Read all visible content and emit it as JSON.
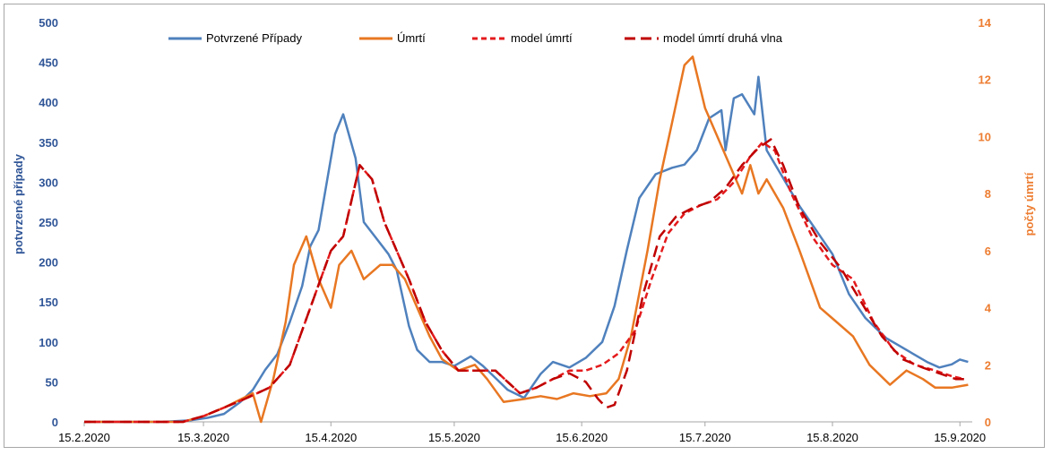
{
  "chart_data": {
    "type": "line",
    "ylabel_left": "potvrzené případy",
    "ylabel_right": "počty úmrtí",
    "ylim_left": [
      0,
      500
    ],
    "ylim_right": [
      0,
      14
    ],
    "yticks_left": [
      "0",
      "50",
      "100",
      "150",
      "200",
      "250",
      "300",
      "350",
      "400",
      "450",
      "500"
    ],
    "yticks_right": [
      "0",
      "2",
      "4",
      "6",
      "8",
      "10",
      "12",
      "14"
    ],
    "x_tick_labels": [
      "15.2.2020",
      "15.3.2020",
      "15.4.2020",
      "15.5.2020",
      "15.6.2020",
      "15.7.2020",
      "15.8.2020",
      "15.9.2020"
    ],
    "x_tick_dates": [
      "2020-02-15",
      "2020-03-15",
      "2020-04-15",
      "2020-05-15",
      "2020-06-15",
      "2020-07-15",
      "2020-08-15",
      "2020-09-15"
    ],
    "xlim": [
      "2020-02-15",
      "2020-09-18"
    ],
    "legend_position": "top",
    "grid": false,
    "series": [
      {
        "name": "Potvrzené Případy",
        "axis": "left",
        "color": "#4f81bd",
        "dash": "solid",
        "points": [
          [
            "2020-02-15",
            0
          ],
          [
            "2020-03-05",
            0
          ],
          [
            "2020-03-12",
            2
          ],
          [
            "2020-03-16",
            5
          ],
          [
            "2020-03-20",
            10
          ],
          [
            "2020-03-24",
            25
          ],
          [
            "2020-03-27",
            40
          ],
          [
            "2020-03-30",
            65
          ],
          [
            "2020-04-02",
            85
          ],
          [
            "2020-04-05",
            125
          ],
          [
            "2020-04-08",
            170
          ],
          [
            "2020-04-10",
            220
          ],
          [
            "2020-04-12",
            240
          ],
          [
            "2020-04-14",
            300
          ],
          [
            "2020-04-16",
            360
          ],
          [
            "2020-04-18",
            385
          ],
          [
            "2020-04-21",
            330
          ],
          [
            "2020-04-23",
            250
          ],
          [
            "2020-04-26",
            230
          ],
          [
            "2020-04-29",
            210
          ],
          [
            "2020-05-01",
            190
          ],
          [
            "2020-05-04",
            120
          ],
          [
            "2020-05-06",
            90
          ],
          [
            "2020-05-09",
            75
          ],
          [
            "2020-05-12",
            75
          ],
          [
            "2020-05-15",
            70
          ],
          [
            "2020-05-19",
            82
          ],
          [
            "2020-05-22",
            70
          ],
          [
            "2020-05-25",
            55
          ],
          [
            "2020-05-28",
            40
          ],
          [
            "2020-06-01",
            30
          ],
          [
            "2020-06-05",
            60
          ],
          [
            "2020-06-08",
            75
          ],
          [
            "2020-06-12",
            68
          ],
          [
            "2020-06-16",
            80
          ],
          [
            "2020-06-20",
            100
          ],
          [
            "2020-06-23",
            145
          ],
          [
            "2020-06-26",
            215
          ],
          [
            "2020-06-29",
            280
          ],
          [
            "2020-07-03",
            310
          ],
          [
            "2020-07-07",
            318
          ],
          [
            "2020-07-10",
            322
          ],
          [
            "2020-07-13",
            340
          ],
          [
            "2020-07-16",
            380
          ],
          [
            "2020-07-19",
            390
          ],
          [
            "2020-07-20",
            340
          ],
          [
            "2020-07-22",
            405
          ],
          [
            "2020-07-24",
            410
          ],
          [
            "2020-07-27",
            385
          ],
          [
            "2020-07-28",
            432
          ],
          [
            "2020-07-30",
            340
          ],
          [
            "2020-08-03",
            305
          ],
          [
            "2020-08-07",
            270
          ],
          [
            "2020-08-11",
            240
          ],
          [
            "2020-08-15",
            210
          ],
          [
            "2020-08-19",
            160
          ],
          [
            "2020-08-23",
            130
          ],
          [
            "2020-08-28",
            105
          ],
          [
            "2020-09-02",
            90
          ],
          [
            "2020-09-07",
            75
          ],
          [
            "2020-09-10",
            68
          ],
          [
            "2020-09-13",
            72
          ],
          [
            "2020-09-15",
            78
          ],
          [
            "2020-09-17",
            75
          ]
        ]
      },
      {
        "name": "Úmrtí",
        "axis": "right",
        "color": "#e87722",
        "dash": "solid",
        "points": [
          [
            "2020-02-15",
            0
          ],
          [
            "2020-03-10",
            0
          ],
          [
            "2020-03-15",
            0.2
          ],
          [
            "2020-03-20",
            0.5
          ],
          [
            "2020-03-27",
            1
          ],
          [
            "2020-03-29",
            0
          ],
          [
            "2020-04-01",
            1.5
          ],
          [
            "2020-04-04",
            3.5
          ],
          [
            "2020-04-06",
            5.5
          ],
          [
            "2020-04-09",
            6.5
          ],
          [
            "2020-04-12",
            5
          ],
          [
            "2020-04-15",
            4
          ],
          [
            "2020-04-17",
            5.5
          ],
          [
            "2020-04-20",
            6
          ],
          [
            "2020-04-23",
            5
          ],
          [
            "2020-04-27",
            5.5
          ],
          [
            "2020-04-30",
            5.5
          ],
          [
            "2020-05-03",
            5
          ],
          [
            "2020-05-06",
            4
          ],
          [
            "2020-05-09",
            3
          ],
          [
            "2020-05-12",
            2.2
          ],
          [
            "2020-05-16",
            1.8
          ],
          [
            "2020-05-20",
            2
          ],
          [
            "2020-05-23",
            1.5
          ],
          [
            "2020-05-27",
            0.7
          ],
          [
            "2020-06-01",
            0.8
          ],
          [
            "2020-06-05",
            0.9
          ],
          [
            "2020-06-09",
            0.8
          ],
          [
            "2020-06-13",
            1
          ],
          [
            "2020-06-17",
            0.9
          ],
          [
            "2020-06-21",
            1
          ],
          [
            "2020-06-24",
            1.5
          ],
          [
            "2020-06-27",
            3
          ],
          [
            "2020-07-01",
            6
          ],
          [
            "2020-07-04",
            8.5
          ],
          [
            "2020-07-07",
            10.5
          ],
          [
            "2020-07-10",
            12.5
          ],
          [
            "2020-07-12",
            12.8
          ],
          [
            "2020-07-15",
            11
          ],
          [
            "2020-07-18",
            10
          ],
          [
            "2020-07-21",
            9
          ],
          [
            "2020-07-24",
            8
          ],
          [
            "2020-07-26",
            9
          ],
          [
            "2020-07-28",
            8
          ],
          [
            "2020-07-30",
            8.5
          ],
          [
            "2020-08-03",
            7.5
          ],
          [
            "2020-08-07",
            6
          ],
          [
            "2020-08-12",
            4
          ],
          [
            "2020-08-16",
            3.5
          ],
          [
            "2020-08-20",
            3
          ],
          [
            "2020-08-24",
            2
          ],
          [
            "2020-08-29",
            1.3
          ],
          [
            "2020-09-02",
            1.8
          ],
          [
            "2020-09-06",
            1.5
          ],
          [
            "2020-09-09",
            1.2
          ],
          [
            "2020-09-13",
            1.2
          ],
          [
            "2020-09-17",
            1.3
          ]
        ]
      },
      {
        "name": "model úmrtí",
        "axis": "right",
        "color": "#e41a1c",
        "dash": "short",
        "points": [
          [
            "2020-02-15",
            0
          ],
          [
            "2020-03-10",
            0
          ],
          [
            "2020-03-15",
            0.2
          ],
          [
            "2020-03-20",
            0.5
          ],
          [
            "2020-03-25",
            0.8
          ],
          [
            "2020-03-31",
            1.2
          ],
          [
            "2020-04-05",
            2
          ],
          [
            "2020-04-10",
            4
          ],
          [
            "2020-04-15",
            6
          ],
          [
            "2020-04-18",
            6.5
          ],
          [
            "2020-04-22",
            9
          ],
          [
            "2020-04-25",
            8.5
          ],
          [
            "2020-04-28",
            7
          ],
          [
            "2020-05-01",
            6
          ],
          [
            "2020-05-04",
            5
          ],
          [
            "2020-05-08",
            3.5
          ],
          [
            "2020-05-12",
            2.5
          ],
          [
            "2020-05-16",
            1.8
          ],
          [
            "2020-05-20",
            1.8
          ],
          [
            "2020-05-25",
            1.8
          ],
          [
            "2020-05-31",
            1.0
          ],
          [
            "2020-06-04",
            1.2
          ],
          [
            "2020-06-08",
            1.5
          ],
          [
            "2020-06-12",
            1.8
          ],
          [
            "2020-06-16",
            1.8
          ],
          [
            "2020-06-20",
            2.0
          ],
          [
            "2020-06-24",
            2.4
          ],
          [
            "2020-06-28",
            3.2
          ],
          [
            "2020-07-02",
            5
          ],
          [
            "2020-07-06",
            6.6
          ],
          [
            "2020-07-10",
            7.3
          ],
          [
            "2020-07-14",
            7.6
          ],
          [
            "2020-07-18",
            7.8
          ],
          [
            "2020-07-22",
            8.4
          ],
          [
            "2020-07-26",
            9.3
          ],
          [
            "2020-07-29",
            9.8
          ],
          [
            "2020-08-01",
            9.5
          ],
          [
            "2020-08-05",
            8
          ],
          [
            "2020-08-10",
            6.5
          ],
          [
            "2020-08-15",
            5.5
          ],
          [
            "2020-08-20",
            5
          ],
          [
            "2020-08-25",
            3.5
          ],
          [
            "2020-08-30",
            2.5
          ],
          [
            "2020-09-04",
            2.0
          ],
          [
            "2020-09-09",
            1.8
          ],
          [
            "2020-09-13",
            1.6
          ],
          [
            "2020-09-16",
            1.5
          ]
        ]
      },
      {
        "name": "model úmrtí druhá vlna",
        "axis": "right",
        "color": "#c00000",
        "dash": "long",
        "points": [
          [
            "2020-02-15",
            0
          ],
          [
            "2020-03-10",
            0
          ],
          [
            "2020-03-15",
            0.2
          ],
          [
            "2020-03-20",
            0.5
          ],
          [
            "2020-03-25",
            0.8
          ],
          [
            "2020-03-31",
            1.2
          ],
          [
            "2020-04-05",
            2
          ],
          [
            "2020-04-10",
            4
          ],
          [
            "2020-04-15",
            6
          ],
          [
            "2020-04-18",
            6.5
          ],
          [
            "2020-04-22",
            9
          ],
          [
            "2020-04-25",
            8.5
          ],
          [
            "2020-04-28",
            7
          ],
          [
            "2020-05-01",
            6
          ],
          [
            "2020-05-04",
            5
          ],
          [
            "2020-05-08",
            3.5
          ],
          [
            "2020-05-12",
            2.5
          ],
          [
            "2020-05-16",
            1.8
          ],
          [
            "2020-05-20",
            1.8
          ],
          [
            "2020-05-25",
            1.8
          ],
          [
            "2020-05-31",
            1.0
          ],
          [
            "2020-06-04",
            1.2
          ],
          [
            "2020-06-08",
            1.5
          ],
          [
            "2020-06-12",
            1.7
          ],
          [
            "2020-06-16",
            1.4
          ],
          [
            "2020-06-19",
            0.8
          ],
          [
            "2020-06-21",
            0.5
          ],
          [
            "2020-06-23",
            0.6
          ],
          [
            "2020-06-26",
            1.8
          ],
          [
            "2020-06-30",
            4.5
          ],
          [
            "2020-07-04",
            6.5
          ],
          [
            "2020-07-08",
            7.2
          ],
          [
            "2020-07-12",
            7.5
          ],
          [
            "2020-07-16",
            7.7
          ],
          [
            "2020-07-20",
            8.2
          ],
          [
            "2020-07-24",
            9.0
          ],
          [
            "2020-07-28",
            9.6
          ],
          [
            "2020-07-31",
            9.9
          ],
          [
            "2020-08-03",
            9.0
          ],
          [
            "2020-08-07",
            7.5
          ],
          [
            "2020-08-12",
            6.3
          ],
          [
            "2020-08-17",
            5.4
          ],
          [
            "2020-08-22",
            4.2
          ],
          [
            "2020-08-27",
            3.0
          ],
          [
            "2020-09-01",
            2.2
          ],
          [
            "2020-09-06",
            1.9
          ],
          [
            "2020-09-10",
            1.7
          ],
          [
            "2020-09-14",
            1.5
          ],
          [
            "2020-09-16",
            1.5
          ]
        ]
      }
    ]
  }
}
